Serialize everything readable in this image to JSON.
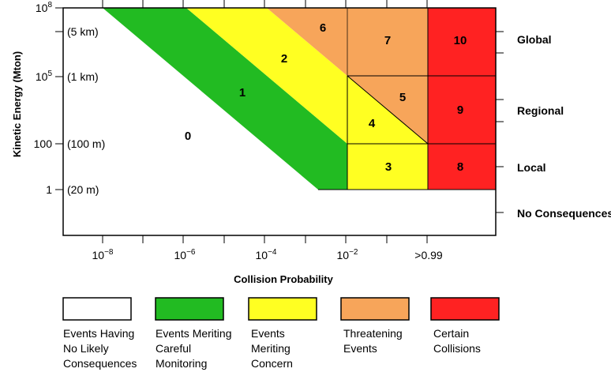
{
  "y_axis": {
    "title": "Kinetic Energy (Mton)",
    "ticks": [
      {
        "base": "10",
        "exp": "8",
        "size": ""
      },
      {
        "base": "",
        "exp": "",
        "size": "(5 km)"
      },
      {
        "base": "10",
        "exp": "5",
        "size": "(1 km)"
      },
      {
        "base": "100",
        "exp": "",
        "size": "(100 m)"
      },
      {
        "base": "1",
        "exp": "",
        "size": "(20 m)"
      }
    ]
  },
  "x_axis": {
    "title": "Collision Probability",
    "ticks": [
      {
        "base": "10",
        "exp": "−8"
      },
      {
        "base": "10",
        "exp": "−6"
      },
      {
        "base": "10",
        "exp": "−4"
      },
      {
        "base": "10",
        "exp": "−2"
      },
      {
        "base": ">0.99",
        "exp": ""
      }
    ]
  },
  "consequences": [
    "Global",
    "Regional",
    "Local",
    "No Consequences"
  ],
  "scale_numbers": [
    "0",
    "1",
    "2",
    "3",
    "4",
    "5",
    "6",
    "7",
    "8",
    "9",
    "10"
  ],
  "colors": {
    "white": "#ffffff",
    "green": "#22bb22",
    "yellow": "#ffff22",
    "orange": "#f7a55a",
    "red": "#ff2222"
  },
  "legend": [
    {
      "color": "#ffffff",
      "lines": [
        "Events Having",
        "No Likely",
        "Consequences"
      ]
    },
    {
      "color": "#22bb22",
      "lines": [
        "Events Meriting",
        "Careful",
        "Monitoring"
      ]
    },
    {
      "color": "#ffff22",
      "lines": [
        "Events",
        "Meriting",
        "Concern"
      ]
    },
    {
      "color": "#f7a55a",
      "lines": [
        "Threatening",
        "Events"
      ]
    },
    {
      "color": "#ff2222",
      "lines": [
        "Certain",
        "Collisions"
      ]
    }
  ]
}
